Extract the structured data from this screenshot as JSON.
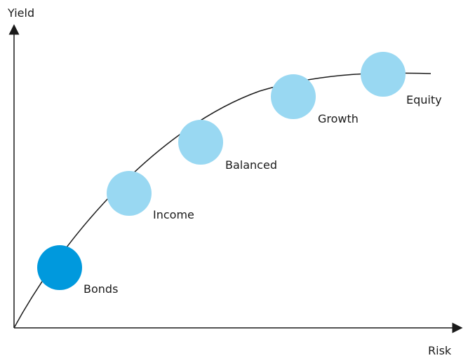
{
  "axes": {
    "y_label": "Yield",
    "x_label": "Risk"
  },
  "nodes": [
    {
      "id": "bonds",
      "label": "Bonds",
      "color": "#0099dd"
    },
    {
      "id": "income",
      "label": "Income",
      "color": "#99d8f2"
    },
    {
      "id": "balanced",
      "label": "Balanced",
      "color": "#99d8f2"
    },
    {
      "id": "growth",
      "label": "Growth",
      "color": "#99d8f2"
    },
    {
      "id": "equity",
      "label": "Equity",
      "color": "#99d8f2"
    }
  ],
  "colors": {
    "axis": "#1a1a1a",
    "curve": "#1a1a1a",
    "highlight": "#0099dd",
    "node": "#99d8f2"
  }
}
